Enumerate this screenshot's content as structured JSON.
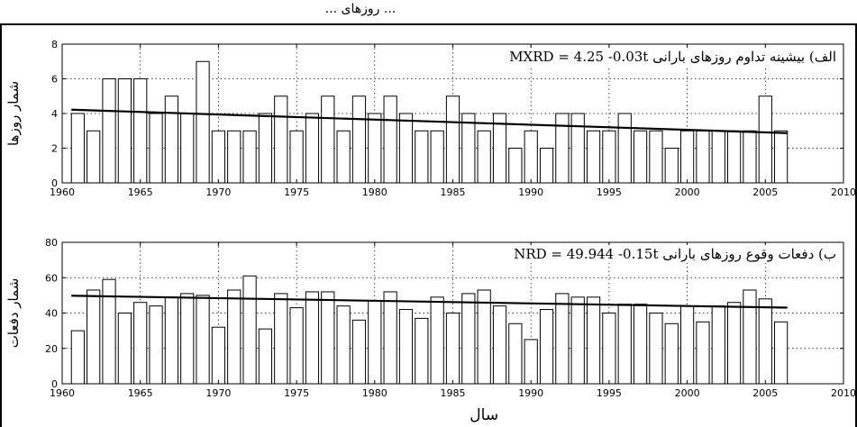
{
  "header_fragment": "... روزهای ...",
  "chart_data": [
    {
      "type": "bar",
      "title": "الف) بیشینه تداوم روزهای بارانی MXRD = 4.25 -0.03t",
      "xlabel": "",
      "ylabel": "شمار روزها",
      "xlim": [
        1960,
        2010
      ],
      "ylim": [
        0,
        8
      ],
      "xticks": [
        1960,
        1965,
        1970,
        1975,
        1980,
        1985,
        1990,
        1995,
        2000,
        2005,
        2010
      ],
      "yticks": [
        0,
        2,
        4,
        6,
        8
      ],
      "grid": true,
      "x": [
        1961,
        1962,
        1963,
        1964,
        1965,
        1966,
        1967,
        1968,
        1969,
        1970,
        1971,
        1972,
        1973,
        1974,
        1975,
        1976,
        1977,
        1978,
        1979,
        1980,
        1981,
        1982,
        1983,
        1984,
        1985,
        1986,
        1987,
        1988,
        1989,
        1990,
        1991,
        1992,
        1993,
        1994,
        1995,
        1996,
        1997,
        1998,
        1999,
        2000,
        2001,
        2002,
        2003,
        2004,
        2005,
        2006
      ],
      "values": [
        4,
        3,
        6,
        6,
        6,
        4,
        5,
        4,
        7,
        3,
        3,
        3,
        4,
        5,
        3,
        4,
        5,
        3,
        5,
        4,
        5,
        4,
        3,
        3,
        5,
        4,
        3,
        4,
        2,
        3,
        2,
        4,
        4,
        3,
        3,
        4,
        3,
        3,
        2,
        3,
        3,
        3,
        3,
        3,
        5,
        3
      ],
      "trend": {
        "intercept": 4.25,
        "slope": -0.03
      }
    },
    {
      "type": "bar",
      "title": "ب) دفعات وقوع روزهای بارانی NRD = 49.944 -0.15t",
      "xlabel": "سال",
      "ylabel": "شمار دفعات",
      "xlim": [
        1960,
        2010
      ],
      "ylim": [
        0,
        80
      ],
      "xticks": [
        1960,
        1965,
        1970,
        1975,
        1980,
        1985,
        1990,
        1995,
        2000,
        2005,
        2010
      ],
      "yticks": [
        0,
        20,
        40,
        60,
        80
      ],
      "grid": true,
      "x": [
        1961,
        1962,
        1963,
        1964,
        1965,
        1966,
        1967,
        1968,
        1969,
        1970,
        1971,
        1972,
        1973,
        1974,
        1975,
        1976,
        1977,
        1978,
        1979,
        1980,
        1981,
        1982,
        1983,
        1984,
        1985,
        1986,
        1987,
        1988,
        1989,
        1990,
        1991,
        1992,
        1993,
        1994,
        1995,
        1996,
        1997,
        1998,
        1999,
        2000,
        2001,
        2002,
        2003,
        2004,
        2005,
        2006
      ],
      "values": [
        30,
        53,
        59,
        40,
        46,
        44,
        49,
        51,
        50,
        32,
        53,
        61,
        31,
        51,
        43,
        52,
        52,
        44,
        36,
        47,
        52,
        42,
        37,
        49,
        40,
        51,
        53,
        44,
        34,
        25,
        42,
        51,
        49,
        49,
        40,
        45,
        45,
        40,
        34,
        44,
        35,
        44,
        46,
        53,
        48,
        35
      ],
      "trend": {
        "intercept": 49.944,
        "slope": -0.15
      }
    }
  ]
}
